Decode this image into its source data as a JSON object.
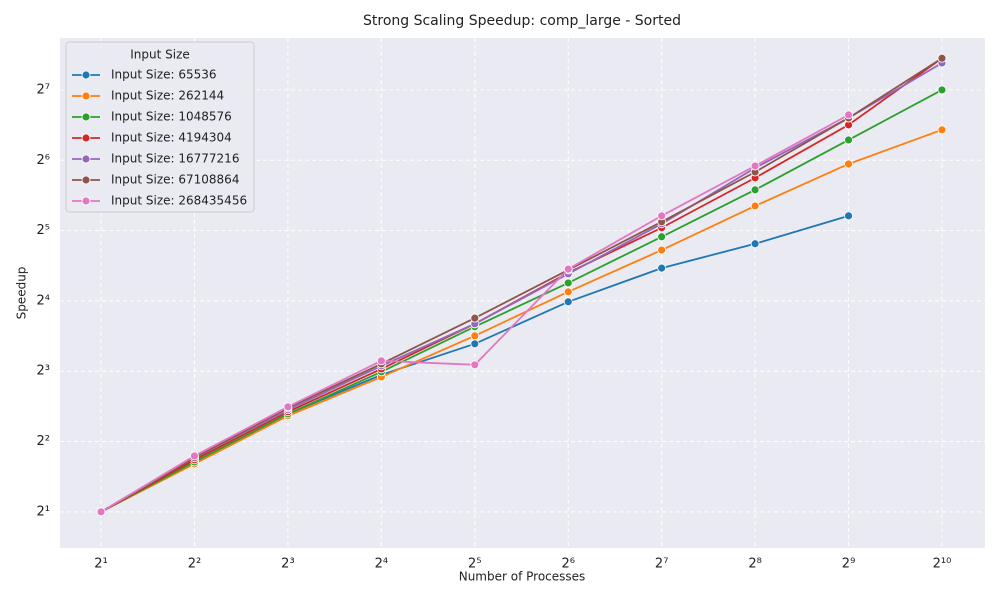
{
  "chart_data": {
    "type": "line",
    "title": "Strong Scaling Speedup: comp_large - Sorted",
    "x_label": "Number of Processes",
    "y_label": "Speedup",
    "x": [
      2,
      4,
      8,
      16,
      32,
      64,
      128,
      256,
      512,
      1024
    ],
    "log_x": true,
    "log_y": true,
    "grid": true,
    "xlim": [
      1.475,
      1409
    ],
    "ylim": [
      1.4,
      213.6
    ],
    "xticks": [
      {
        "value": 2,
        "label": "2¹"
      },
      {
        "value": 4,
        "label": "2²"
      },
      {
        "value": 8,
        "label": "2³"
      },
      {
        "value": 16,
        "label": "2⁴"
      },
      {
        "value": 32,
        "label": "2⁵"
      },
      {
        "value": 64,
        "label": "2⁶"
      },
      {
        "value": 128,
        "label": "2⁷"
      },
      {
        "value": 256,
        "label": "2⁸"
      },
      {
        "value": 512,
        "label": "2⁹"
      },
      {
        "value": 1024,
        "label": "2¹⁰"
      }
    ],
    "yticks": [
      {
        "value": 2,
        "label": "2¹"
      },
      {
        "value": 4,
        "label": "2²"
      },
      {
        "value": 8,
        "label": "2³"
      },
      {
        "value": 16,
        "label": "2⁴"
      },
      {
        "value": 32,
        "label": "2⁵"
      },
      {
        "value": 64,
        "label": "2⁶"
      },
      {
        "value": 128,
        "label": "2⁷"
      }
    ],
    "legend_title": "Input Size",
    "legend_position": "upper left",
    "series": [
      {
        "name": "Input Size: 65536",
        "color": "#1f77b4",
        "values": [
          2,
          3.27,
          5.25,
          7.72,
          10.48,
          15.85,
          22.1,
          28.1,
          37.0,
          null
        ]
      },
      {
        "name": "Input Size: 262144",
        "color": "#ff7f0e",
        "values": [
          2,
          3.21,
          5.15,
          7.56,
          11.34,
          17.5,
          26.4,
          40.8,
          61.7,
          86.4
        ]
      },
      {
        "name": "Input Size: 1048576",
        "color": "#2ca02c",
        "values": [
          2,
          3.27,
          5.25,
          7.95,
          12.4,
          19.1,
          30.1,
          47.8,
          78.2,
          128
        ]
      },
      {
        "name": "Input Size: 4194304",
        "color": "#d62728",
        "values": [
          2,
          3.34,
          5.36,
          8.18,
          12.76,
          21.1,
          32.9,
          53.8,
          90.7,
          175
        ]
      },
      {
        "name": "Input Size: 16777216",
        "color": "#9467bd",
        "values": [
          2,
          3.41,
          5.47,
          8.43,
          12.76,
          20.9,
          34.2,
          59.3,
          97.1,
          167
        ]
      },
      {
        "name": "Input Size: 67108864",
        "color": "#8c564b",
        "values": [
          2,
          3.41,
          5.57,
          8.6,
          13.5,
          21.7,
          34.9,
          57.0,
          97.1,
          175
        ]
      },
      {
        "name": "Input Size: 268435456",
        "color": "#e377c2",
        "values": [
          2,
          3.47,
          5.63,
          8.86,
          8.52,
          21.9,
          37.0,
          60.5,
          100.1,
          null
        ]
      }
    ]
  }
}
